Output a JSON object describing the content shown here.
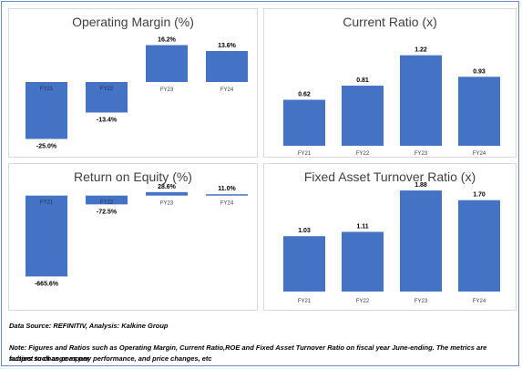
{
  "chart_data": [
    {
      "type": "bar",
      "title": "Operating Margin (%)",
      "categories": [
        "FY21",
        "FY22",
        "FY23",
        "FY24"
      ],
      "values": [
        -25.0,
        -13.4,
        16.2,
        13.6
      ],
      "value_labels": [
        "-25.0%",
        "-13.4%",
        "16.2%",
        "13.6%"
      ],
      "ylim": [
        -30,
        20
      ],
      "grid": false,
      "color": "#4472c4"
    },
    {
      "type": "bar",
      "title": "Current Ratio (x)",
      "categories": [
        "FY21",
        "FY22",
        "FY23",
        "FY24"
      ],
      "values": [
        0.62,
        0.81,
        1.22,
        0.93
      ],
      "value_labels": [
        "0.62",
        "0.81",
        "1.22",
        "0.93"
      ],
      "ylim": [
        0,
        1.4
      ],
      "grid": false,
      "color": "#4472c4"
    },
    {
      "type": "bar",
      "title": "Return on Equity (%)",
      "categories": [
        "FY21",
        "FY22",
        "FY23",
        "FY24"
      ],
      "values": [
        -665.6,
        -72.5,
        28.6,
        11.0
      ],
      "value_labels": [
        "-665.6%",
        "-72.5%",
        "28.6%",
        "11.0%"
      ],
      "ylim": [
        -700,
        50
      ],
      "grid": false,
      "color": "#4472c4"
    },
    {
      "type": "bar",
      "title": "Fixed Asset Turnover Ratio (x)",
      "categories": [
        "FY21",
        "FY22",
        "FY23",
        "FY24"
      ],
      "values": [
        1.03,
        1.11,
        1.88,
        1.7
      ],
      "value_labels": [
        "1.03",
        "1.11",
        "1.88",
        "1.70"
      ],
      "ylim": [
        0,
        2.0
      ],
      "grid": false,
      "color": "#4472c4"
    }
  ],
  "footer": {
    "source": "Data Source: REFINITIV, Analysis: Kalkine Group",
    "note_line1": "Note: Figures and Ratios such as Operating Margin, Current Ratio,ROE and Fixed Asset Turnover Ratio on fiscal year June-ending. The metrics are subject to change as per",
    "note_line2": "factors such as company performance, and price changes, etc"
  }
}
